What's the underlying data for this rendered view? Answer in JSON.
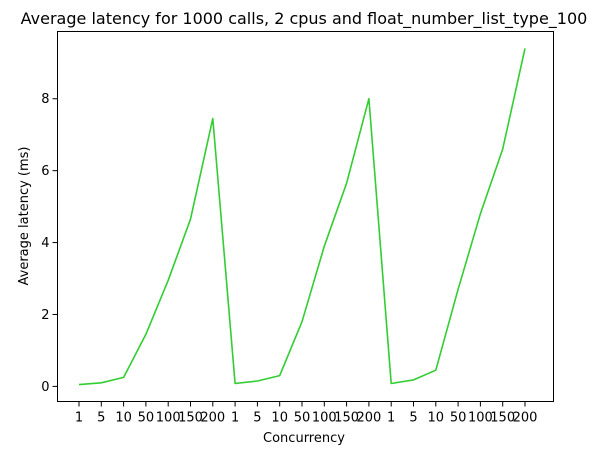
{
  "chart_data": {
    "type": "line",
    "title": "Average latency for 1000 calls, 2 cpus and float_number_list_type_100",
    "xlabel": "Concurrency",
    "ylabel": "Average latency (ms)",
    "categories": [
      "1",
      "5",
      "10",
      "50",
      "100",
      "150",
      "200",
      "1",
      "5",
      "10",
      "50",
      "100",
      "150",
      "200",
      "1",
      "5",
      "10",
      "50",
      "100",
      "150",
      "200"
    ],
    "series": [
      {
        "color": "#32cd32",
        "values": [
          0.05,
          0.1,
          0.25,
          1.45,
          2.95,
          4.65,
          7.45,
          0.08,
          0.15,
          0.3,
          1.8,
          3.9,
          5.65,
          8.0,
          0.08,
          0.18,
          0.45,
          2.7,
          4.8,
          6.6,
          9.4
        ]
      }
    ],
    "yticks": [
      0,
      2,
      4,
      6,
      8
    ],
    "ylim": [
      -0.42,
      9.87
    ],
    "grid": false,
    "legend": "none"
  }
}
